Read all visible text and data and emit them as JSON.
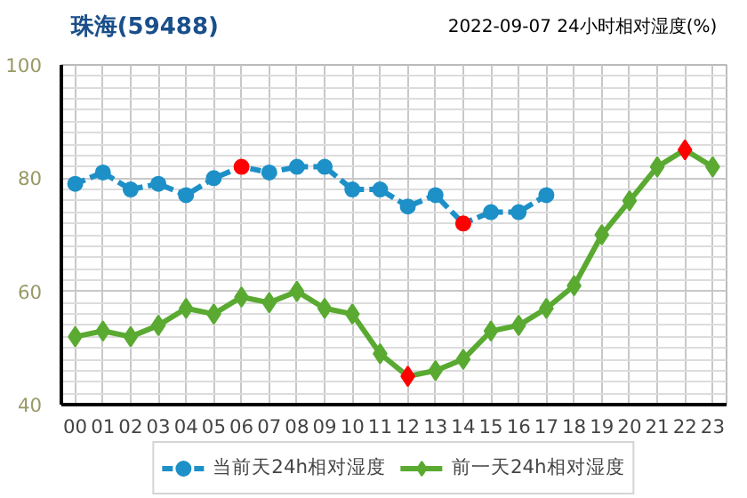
{
  "chart_data": {
    "type": "line",
    "title": "珠海(59488)",
    "subtitle": "2022-09-07 24小时相对湿度(%)",
    "categories": [
      "00",
      "01",
      "02",
      "03",
      "04",
      "05",
      "06",
      "07",
      "08",
      "09",
      "10",
      "11",
      "12",
      "13",
      "14",
      "15",
      "16",
      "17",
      "18",
      "19",
      "20",
      "21",
      "22",
      "23"
    ],
    "series": [
      {
        "name": "当前天24h相对湿度",
        "color": "#1e90c8",
        "marker": "circle",
        "line_style": "dashed",
        "values": [
          79,
          81,
          78,
          79,
          77,
          80,
          82,
          81,
          82,
          82,
          78,
          78,
          75,
          77,
          72,
          74,
          74,
          77,
          null,
          null,
          null,
          null,
          null,
          null
        ],
        "colors": [
          "#1e90c8",
          "#1e90c8",
          "#1e90c8",
          "#1e90c8",
          "#1e90c8",
          "#1e90c8",
          "#ff0000",
          "#1e90c8",
          "#1e90c8",
          "#1e90c8",
          "#1e90c8",
          "#1e90c8",
          "#1e90c8",
          "#1e90c8",
          "#ff0000",
          "#1e90c8",
          "#1e90c8",
          "#1e90c8",
          null,
          null,
          null,
          null,
          null,
          null
        ]
      },
      {
        "name": "前一天24h相对湿度",
        "color": "#5aaa32",
        "marker": "diamond",
        "line_style": "solid",
        "values": [
          52,
          53,
          52,
          54,
          57,
          56,
          59,
          58,
          60,
          57,
          56,
          49,
          45,
          46,
          48,
          53,
          54,
          57,
          61,
          70,
          76,
          82,
          85,
          82
        ],
        "colors": [
          "#5aaa32",
          "#5aaa32",
          "#5aaa32",
          "#5aaa32",
          "#5aaa32",
          "#5aaa32",
          "#5aaa32",
          "#5aaa32",
          "#5aaa32",
          "#5aaa32",
          "#5aaa32",
          "#5aaa32",
          "#ff0000",
          "#5aaa32",
          "#5aaa32",
          "#5aaa32",
          "#5aaa32",
          "#5aaa32",
          "#5aaa32",
          "#5aaa32",
          "#5aaa32",
          "#5aaa32",
          "#ff0000",
          "#5aaa32"
        ]
      }
    ],
    "ylim": [
      40,
      100
    ],
    "yticks": [
      40,
      {
        "value": 42,
        "label": null
      },
      {
        "value": 44,
        "label": null
      },
      {
        "value": 46,
        "label": null
      },
      {
        "value": 48,
        "label": null
      },
      {
        "value": 50,
        "label": null
      },
      {
        "value": 52,
        "label": null
      },
      {
        "value": 54,
        "label": null
      },
      {
        "value": 56,
        "label": null
      },
      {
        "value": 58,
        "label": null
      },
      60,
      {
        "value": 62,
        "label": null
      },
      {
        "value": 64,
        "label": null
      },
      {
        "value": 66,
        "label": null
      },
      {
        "value": 68,
        "label": null
      },
      {
        "value": 70,
        "label": null
      },
      {
        "value": 72,
        "label": null
      },
      {
        "value": 74,
        "label": null
      },
      {
        "value": 76,
        "label": null
      },
      {
        "value": 78,
        "label": null
      },
      80,
      {
        "value": 82,
        "label": null
      },
      {
        "value": 84,
        "label": null
      },
      {
        "value": 86,
        "label": null
      },
      {
        "value": 88,
        "label": null
      },
      {
        "value": 90,
        "label": null
      },
      {
        "value": 92,
        "label": null
      },
      {
        "value": 94,
        "label": null
      },
      {
        "value": 96,
        "label": null
      },
      {
        "value": 98,
        "label": null
      },
      100
    ],
    "grid": true,
    "legend": "bottom"
  }
}
